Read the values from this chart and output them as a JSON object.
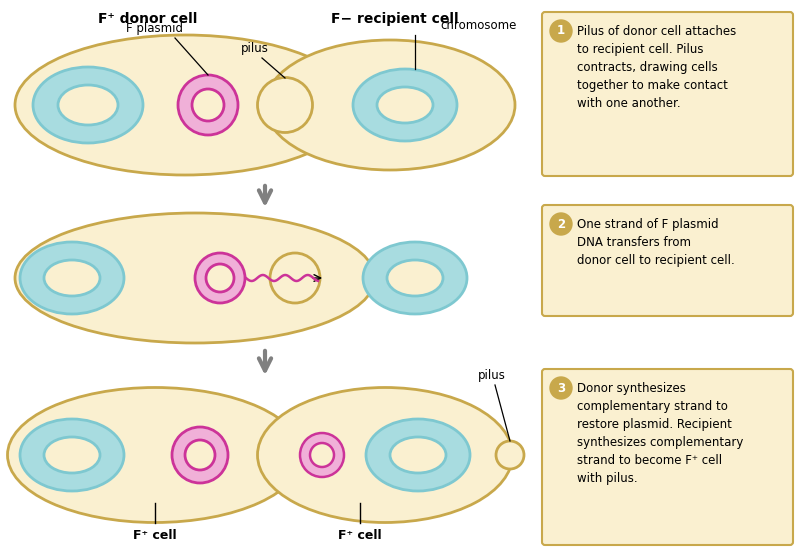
{
  "bg_color": "#ffffff",
  "cell_fill": "#faf0d0",
  "cell_edge": "#c8a84b",
  "chrom_color1": "#7ec8d0",
  "chrom_color2": "#a8dce0",
  "plasmid_color": "#cc3399",
  "plasmid_fill": "#f0b0d8",
  "label_color": "#000000",
  "arrow_color": "#808080",
  "box_fill": "#faf0d0",
  "box_edge": "#c8a84b",
  "step_circle_fill": "#c8a84b",
  "step_text_color": "#ffffff",
  "step1_text": "Pilus of donor cell attaches\nto recipient cell. Pilus\ncontracts, drawing cells\ntogether to make contact\nwith one another.",
  "step2_text": "One strand of F plasmid\nDNA transfers from\ndonor cell to recipient cell.",
  "step3_text": "Donor synthesizes\ncomplementary strand to\nrestore plasmid. Recipient\nsynthesizes complementary\nstrand to become F⁺ cell\nwith pilus.",
  "label_f_plus_donor": "F⁺ donor cell",
  "label_f_minus_recipient": "F− recipient cell",
  "label_f_plasmid": "F plasmid",
  "label_pilus_top": "pilus",
  "label_chromosome": "chromosome",
  "label_pilus_bottom": "pilus",
  "label_f_plus_cell_left": "F⁺ cell",
  "label_f_plus_cell_right": "F⁺ cell"
}
